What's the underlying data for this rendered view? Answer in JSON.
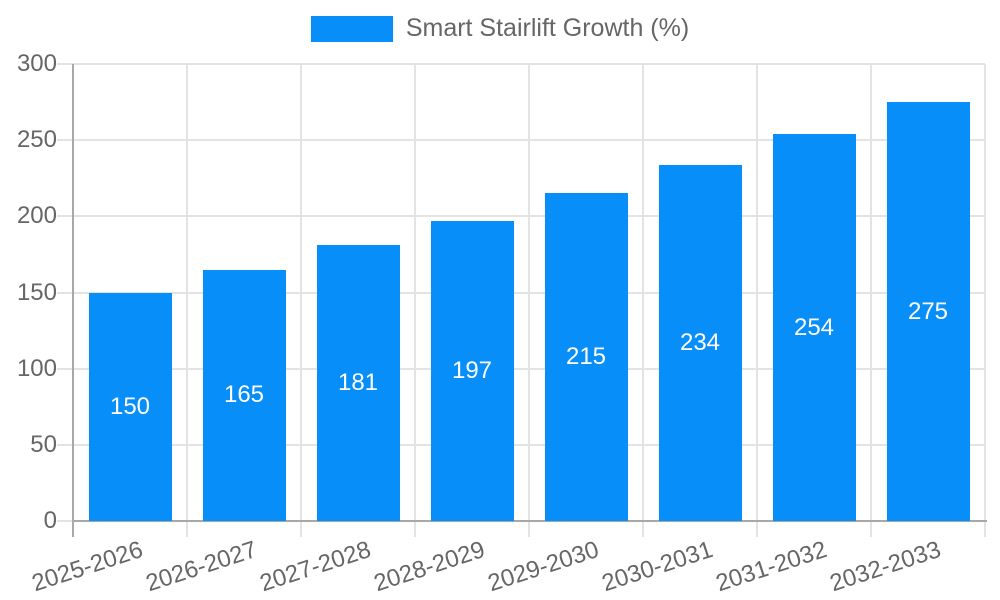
{
  "legend": {
    "label": "Smart Stairlift Growth (%)"
  },
  "colors": {
    "bar": "#088ef8",
    "grid": "#e3e3e3",
    "axis": "#a8a8a8",
    "tick_text": "#666666",
    "bar_label_text": "#ffffff"
  },
  "chart_data": {
    "type": "bar",
    "title": "Smart Stairlift Growth (%)",
    "categories": [
      "2025-2026",
      "2026-2027",
      "2027-2028",
      "2028-2029",
      "2029-2030",
      "2030-2031",
      "2031-2032",
      "2032-2033"
    ],
    "values": [
      150,
      165,
      181,
      197,
      215,
      234,
      254,
      275
    ],
    "xlabel": "",
    "ylabel": "",
    "ylim": [
      0,
      300
    ],
    "yticks": [
      0,
      50,
      100,
      150,
      200,
      250,
      300
    ],
    "grid": true,
    "legend_position": "top",
    "legend_entries": [
      "Smart Stairlift Growth (%)"
    ],
    "bar_color": "#088ef8",
    "value_labels_position": "inside-center",
    "x_label_rotation_deg": -18
  }
}
